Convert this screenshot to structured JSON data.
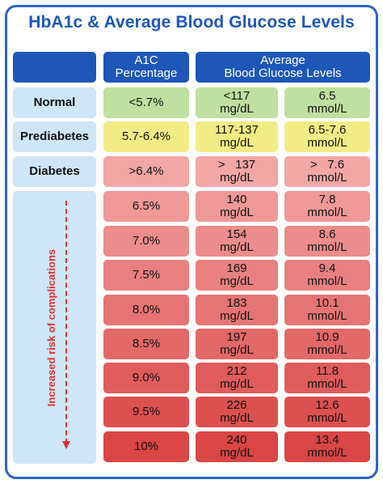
{
  "title": "HbA1c & Average Blood Glucose Levels",
  "headers": {
    "a1c_line1": "A1C",
    "a1c_line2": "Percentage",
    "avg_line1": "Average",
    "avg_line2": "Blood Glucose Levels"
  },
  "side_label": "Increased risk of complications",
  "colors": {
    "brand_blue": "#1e57b8",
    "label_bg": "#cfe6f7",
    "normal": "#bfe0a0",
    "prediabetes": "#f2ec86",
    "risk_scale": [
      "#f2a6a6",
      "#ef9898",
      "#ec8c8c",
      "#e98080",
      "#e67474",
      "#e36868",
      "#e05c5c",
      "#dd5050",
      "#da4545"
    ],
    "arrow": "#e53131"
  },
  "rows": [
    {
      "label": "Normal",
      "a1c": "<5.7%",
      "mgdl_1": "<117",
      "mgdl_2": "mg/dL",
      "mmol_1": "6.5",
      "mmol_2": "mmol/L"
    },
    {
      "label": "Prediabetes",
      "a1c": "5.7-6.4%",
      "mgdl_1": "117-137",
      "mgdl_2": "mg/dL",
      "mmol_1": "6.5-7.6",
      "mmol_2": "mmol/L"
    },
    {
      "label": "Diabetes",
      "a1c": ">6.4%",
      "mgdl_1": ">   137",
      "mgdl_2": "mg/dL",
      "mmol_1": ">   7.6",
      "mmol_2": "mmol/L"
    },
    {
      "label": "",
      "a1c": "6.5%",
      "mgdl_1": "140",
      "mgdl_2": "mg/dL",
      "mmol_1": "7.8",
      "mmol_2": "mmol/L"
    },
    {
      "label": "",
      "a1c": "7.0%",
      "mgdl_1": "154",
      "mgdl_2": "mg/dL",
      "mmol_1": "8.6",
      "mmol_2": "mmol/L"
    },
    {
      "label": "",
      "a1c": "7.5%",
      "mgdl_1": "169",
      "mgdl_2": "mg/dL",
      "mmol_1": "9.4",
      "mmol_2": "mmol/L"
    },
    {
      "label": "",
      "a1c": "8.0%",
      "mgdl_1": "183",
      "mgdl_2": "mg/dL",
      "mmol_1": "10.1",
      "mmol_2": "mmol/L"
    },
    {
      "label": "",
      "a1c": "8.5%",
      "mgdl_1": "197",
      "mgdl_2": "mg/dL",
      "mmol_1": "10.9",
      "mmol_2": "mmol/L"
    },
    {
      "label": "",
      "a1c": "9.0%",
      "mgdl_1": "212",
      "mgdl_2": "mg/dL",
      "mmol_1": "11.8",
      "mmol_2": "mmol/L"
    },
    {
      "label": "",
      "a1c": "9.5%",
      "mgdl_1": "226",
      "mgdl_2": "mg/dL",
      "mmol_1": "12.6",
      "mmol_2": "mmol/L"
    },
    {
      "label": "",
      "a1c": "10%",
      "mgdl_1": "240",
      "mgdl_2": "mg/dL",
      "mmol_1": "13.4",
      "mmol_2": "mmol/L"
    }
  ]
}
